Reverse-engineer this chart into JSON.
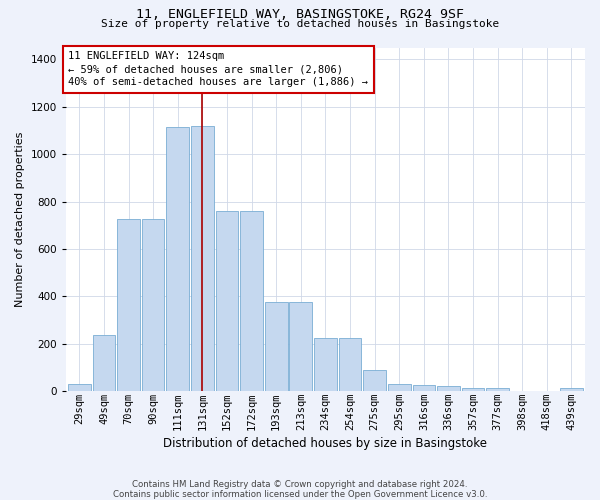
{
  "title_line1": "11, ENGLEFIELD WAY, BASINGSTOKE, RG24 9SF",
  "title_line2": "Size of property relative to detached houses in Basingstoke",
  "xlabel": "Distribution of detached houses by size in Basingstoke",
  "ylabel": "Number of detached properties",
  "categories": [
    "29sqm",
    "49sqm",
    "70sqm",
    "90sqm",
    "111sqm",
    "131sqm",
    "152sqm",
    "172sqm",
    "193sqm",
    "213sqm",
    "234sqm",
    "254sqm",
    "275sqm",
    "295sqm",
    "316sqm",
    "336sqm",
    "357sqm",
    "377sqm",
    "398sqm",
    "418sqm",
    "439sqm"
  ],
  "values": [
    30,
    235,
    725,
    725,
    1115,
    1120,
    760,
    760,
    375,
    375,
    225,
    225,
    90,
    30,
    25,
    20,
    13,
    13,
    0,
    0,
    13
  ],
  "bar_color": "#c5d8ef",
  "bar_edge_color": "#7aadd4",
  "vline_x_index": 5,
  "vline_color": "#aa0000",
  "ylim_max": 1450,
  "yticks": [
    0,
    200,
    400,
    600,
    800,
    1000,
    1200,
    1400
  ],
  "annotation_text": "11 ENGLEFIELD WAY: 124sqm\n← 59% of detached houses are smaller (2,806)\n40% of semi-detached houses are larger (1,886) →",
  "footer_line1": "Contains HM Land Registry data © Crown copyright and database right 2024.",
  "footer_line2": "Contains public sector information licensed under the Open Government Licence v3.0.",
  "fig_bg_color": "#eef2fb",
  "plot_bg_color": "#ffffff",
  "grid_color": "#d0d8e8",
  "title1_fontsize": 9.5,
  "title2_fontsize": 8.0,
  "ylabel_fontsize": 8.0,
  "xlabel_fontsize": 8.5,
  "tick_fontsize": 7.5,
  "annot_fontsize": 7.5,
  "footer_fontsize": 6.2
}
